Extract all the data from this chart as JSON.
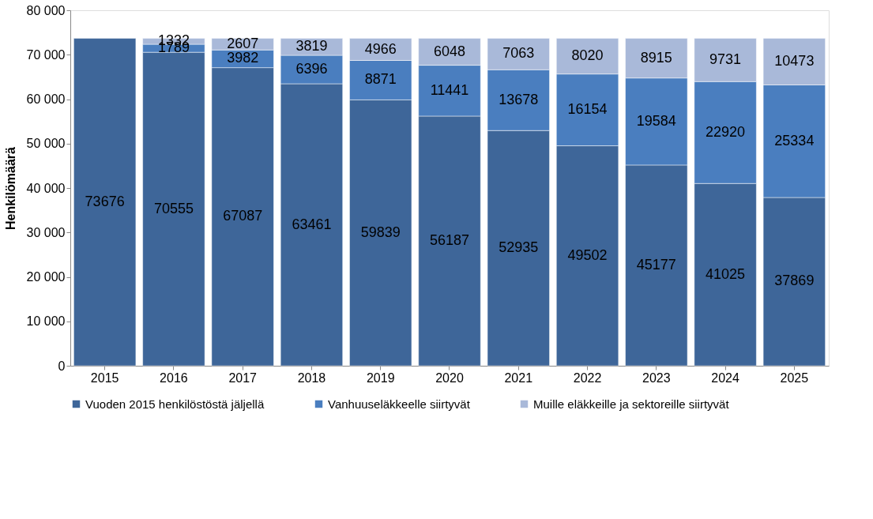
{
  "chart_data": {
    "type": "bar",
    "stacked": true,
    "ylabel": "Henkilömäärä",
    "categories": [
      "2015",
      "2016",
      "2017",
      "2018",
      "2019",
      "2020",
      "2021",
      "2022",
      "2023",
      "2024",
      "2025"
    ],
    "series": [
      {
        "name": "Vuoden 2015 henkilöstöstä jäljellä",
        "color": "#3e6699",
        "values": [
          73676,
          70555,
          67087,
          63461,
          59839,
          56187,
          52935,
          49502,
          45177,
          41025,
          37869
        ]
      },
      {
        "name": "Vanhuuseläkkeelle siirtyvät",
        "color": "#4a7ebf",
        "values": [
          null,
          1789,
          3982,
          6396,
          8871,
          11441,
          13678,
          16154,
          19584,
          22920,
          25334
        ]
      },
      {
        "name": "Muille eläkkeille ja sektoreille siirtyvät",
        "color": "#a9b9d9",
        "values": [
          null,
          1332,
          2607,
          3819,
          4966,
          6048,
          7063,
          8020,
          8915,
          9731,
          10473
        ]
      }
    ],
    "ylim": [
      0,
      80000
    ],
    "yticks": [
      0,
      {
        "value": 10000,
        "label": "10 000"
      },
      {
        "value": 20000,
        "label": "20 000"
      },
      {
        "value": 30000,
        "label": "30 000"
      },
      {
        "value": 40000,
        "label": "40 000"
      },
      {
        "value": 50000,
        "label": "50 000"
      },
      {
        "value": 60000,
        "label": "60 000"
      },
      {
        "value": 70000,
        "label": "70 000"
      },
      {
        "value": 80000,
        "label": "80 000"
      }
    ],
    "data_labels": true,
    "grid": false,
    "legend": "bottom"
  }
}
